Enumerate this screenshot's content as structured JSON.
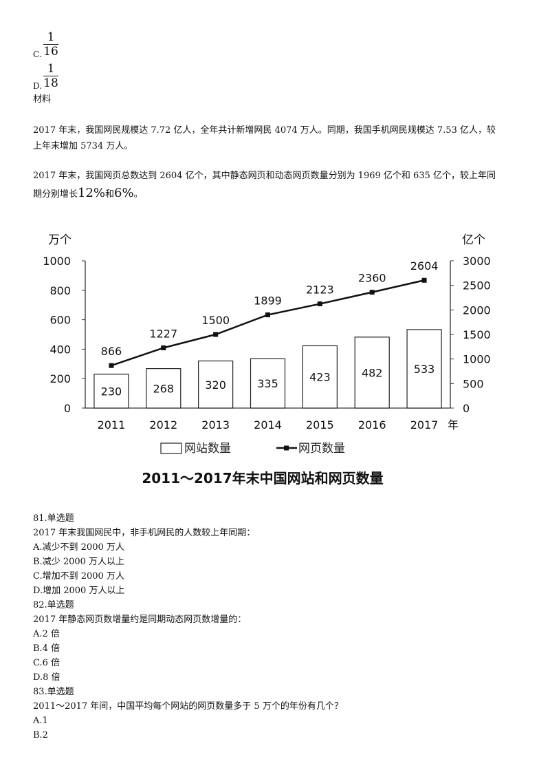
{
  "options_top": [
    {
      "letter": "C.",
      "numerator": "1",
      "denominator": "16"
    },
    {
      "letter": "D.",
      "numerator": "1",
      "denominator": "18"
    }
  ],
  "material_label": "材料",
  "para1_line1": "2017 年末，我国网民规模达 7.72 亿人，全年共计新增网民 4074 万人。同期，我国手机网民规模达 7.53 亿人，较",
  "para1_line2": "上年末增加 5734 万人。",
  "para2_line1": "2017 年末，我国网页总数达到 2604 亿个，其中静态网页和动态网页数量分别为 1969 亿个和 635 亿个，较上年同",
  "para2_line2_a": "期分别增长",
  "para2_pct1": "12%",
  "para2_and": "和",
  "para2_pct2": "6%",
  "para2_end": "。",
  "chart_data": {
    "type": "bar+line",
    "title": "2011～2017年末中国网站和网页数量",
    "categories": [
      "2011",
      "2012",
      "2013",
      "2014",
      "2015",
      "2016",
      "2017"
    ],
    "x_unit": "年",
    "left_axis": {
      "unit": "万个",
      "ticks": [
        "0",
        "200",
        "400",
        "600",
        "800",
        "1000"
      ],
      "ylim": [
        0,
        1000
      ]
    },
    "right_axis": {
      "unit": "亿个",
      "ticks": [
        "0",
        "500",
        "1000",
        "1500",
        "2000",
        "2500",
        "3000"
      ],
      "ylim": [
        0,
        3000
      ]
    },
    "series": [
      {
        "name": "网站数量",
        "kind": "bar",
        "axis": "left",
        "values": [
          230,
          268,
          320,
          335,
          423,
          482,
          533
        ]
      },
      {
        "name": "网页数量",
        "kind": "line",
        "axis": "right",
        "values": [
          866,
          1227,
          1500,
          1899,
          2123,
          2360,
          2604
        ]
      }
    ],
    "legend_position": "bottom"
  },
  "questions": [
    {
      "number": "81.单选题",
      "stem": "2017 年末我国网民中，非手机网民的人数较上年同期：",
      "options": [
        "A.减少不到 2000 万人",
        "B.减少 2000 万人以上",
        "C.增加不到 2000 万人",
        "D.增加 2000 万人以上"
      ]
    },
    {
      "number": "82.单选题",
      "stem": "2017 年静态网页数增量约是同期动态网页数增量的：",
      "options": [
        "A.2 倍",
        "B.4 倍",
        "C.6 倍",
        "D.8 倍"
      ]
    },
    {
      "number": "83.单选题",
      "stem": "2011～2017 年间，中国平均每个网站的网页数量多于 5 万个的年份有几个？",
      "options": [
        "A.1",
        "B.2"
      ]
    }
  ]
}
